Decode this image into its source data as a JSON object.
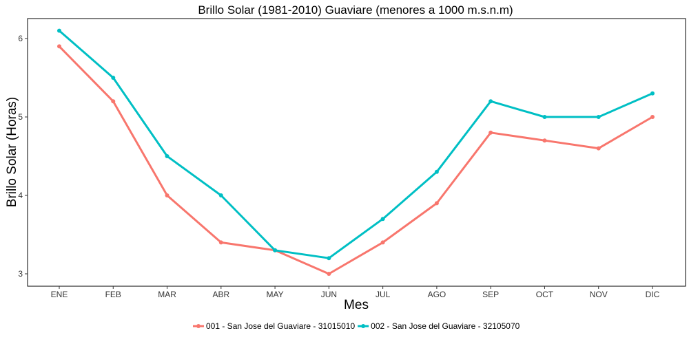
{
  "chart_data": {
    "type": "line",
    "title": "Brillo Solar (1981-2010) Guaviare (menores a 1000 m.s.n.m)",
    "xlabel": "Mes",
    "ylabel": "Brillo Solar (Horas)",
    "categories": [
      "ENE",
      "FEB",
      "MAR",
      "ABR",
      "MAY",
      "JUN",
      "JUL",
      "AGO",
      "SEP",
      "OCT",
      "NOV",
      "DIC"
    ],
    "ylim": [
      2.9,
      6.25
    ],
    "yticks": [
      3,
      4,
      5,
      6
    ],
    "ytick_labels": [
      "3",
      "4",
      "5",
      "6"
    ],
    "grid": false,
    "legend_position": "bottom",
    "series": [
      {
        "name": "001 - San Jose del Guaviare - 31015010",
        "color": "#F8766D",
        "values": [
          5.9,
          5.2,
          4.0,
          3.4,
          3.3,
          3.0,
          3.4,
          3.9,
          4.8,
          4.7,
          4.6,
          5.0
        ]
      },
      {
        "name": "002 - San Jose del Guaviare - 32105070",
        "color": "#00BFC4",
        "values": [
          6.1,
          5.5,
          4.5,
          4.0,
          3.3,
          3.2,
          3.7,
          4.3,
          5.2,
          5.0,
          5.0,
          5.3
        ]
      }
    ]
  }
}
